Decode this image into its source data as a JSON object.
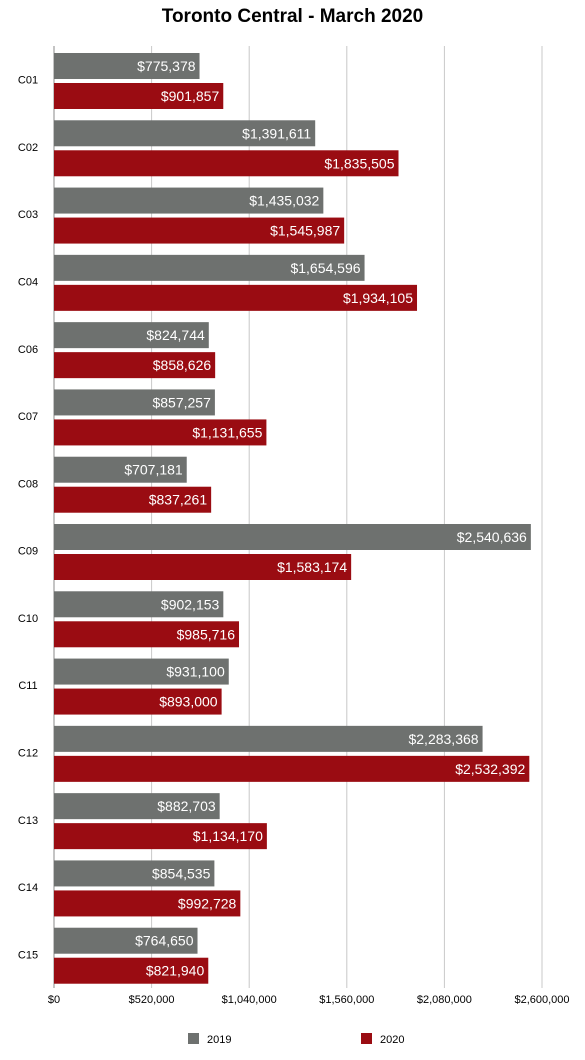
{
  "chart_data": {
    "type": "bar",
    "orientation": "horizontal",
    "title": "Toronto Central - March 2020",
    "categories": [
      "C01",
      "C02",
      "C03",
      "C04",
      "C06",
      "C07",
      "C08",
      "C09",
      "C10",
      "C11",
      "C12",
      "C13",
      "C14",
      "C15"
    ],
    "series": [
      {
        "name": "2019",
        "color": "#6e716f",
        "values": [
          775378,
          1391611,
          1435032,
          1654596,
          824744,
          857257,
          707181,
          2540636,
          902153,
          931100,
          2283368,
          882703,
          854535,
          764650
        ],
        "labels": [
          "$775,378",
          "$1,391,611",
          "$1,435,032",
          "$1,654,596",
          "$824,744",
          "$857,257",
          "$707,181",
          "$2,540,636",
          "$902,153",
          "$931,100",
          "$2,283,368",
          "$882,703",
          "$854,535",
          "$764,650"
        ]
      },
      {
        "name": "2020",
        "color": "#9a0c12",
        "values": [
          901857,
          1835505,
          1545987,
          1934105,
          858626,
          1131655,
          837261,
          1583174,
          985716,
          893000,
          2532392,
          1134170,
          992728,
          821940
        ],
        "labels": [
          "$901,857",
          "$1,835,505",
          "$1,545,987",
          "$1,934,105",
          "$858,626",
          "$1,131,655",
          "$837,261",
          "$1,583,174",
          "$985,716",
          "$893,000",
          "$2,532,392",
          "$1,134,170",
          "$992,728",
          "$821,940"
        ]
      }
    ],
    "xlim": [
      0,
      2600000
    ],
    "x_ticks": [
      0,
      520000,
      1040000,
      1560000,
      2080000,
      2600000
    ],
    "x_tick_labels": [
      "$0",
      "$520,000",
      "$1,040,000",
      "$1,560,000",
      "$2,080,000",
      "$2,600,000"
    ],
    "grid": true,
    "legend_position": "bottom"
  }
}
